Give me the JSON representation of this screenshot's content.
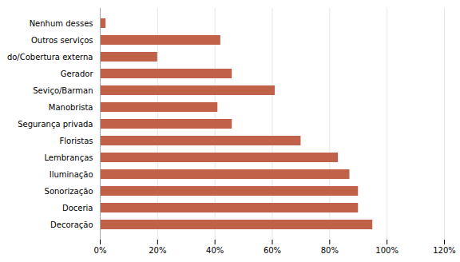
{
  "chart_data": {
    "type": "bar",
    "orientation": "horizontal",
    "categories": [
      "Decoração",
      "Doceria",
      "Sonorização",
      "Iluminação",
      "Lembranças",
      "Floristas",
      "Segurança privada",
      "Manobrista",
      "Seviço/Barman",
      "Gerador",
      "do/Cobertura externa",
      "Outros serviços",
      "Nenhum desses"
    ],
    "values": [
      95,
      90,
      90,
      87,
      83,
      70,
      46,
      41,
      61,
      46,
      20,
      42,
      2
    ],
    "color": "#c0614a",
    "xlim": [
      0,
      120
    ],
    "xticks": [
      {
        "value": 0,
        "label": "0%"
      },
      {
        "value": 20,
        "label": "20%"
      },
      {
        "value": 40,
        "label": "40%"
      },
      {
        "value": 60,
        "label": "60%"
      },
      {
        "value": 80,
        "label": "80%"
      },
      {
        "value": 100,
        "label": "100%"
      },
      {
        "value": 120,
        "label": "120%"
      }
    ],
    "grid": true
  }
}
